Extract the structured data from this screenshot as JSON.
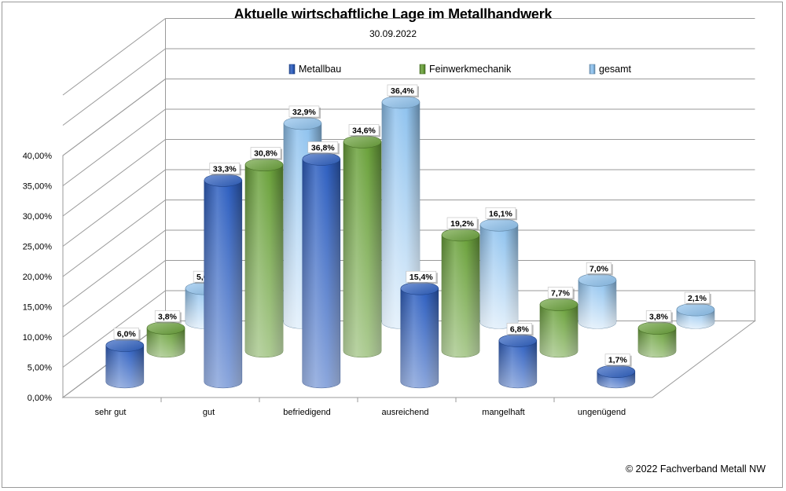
{
  "title": "Aktuelle wirtschaftliche Lage im Metallhandwerk",
  "subtitle": "30.09.2022",
  "copyright": "© 2022 Fachverband Metall NW",
  "colors": {
    "metallbau": "#2e5fc0",
    "feinwerkmechanik": "#6aa13a",
    "gesamt": "#8ec2ee"
  },
  "chart_data": {
    "type": "bar",
    "title": "Aktuelle wirtschaftliche Lage im Metallhandwerk",
    "subtitle": "30.09.2022",
    "categories": [
      "sehr gut",
      "gut",
      "befriedigend",
      "ausreichend",
      "mangelhaft",
      "ungenügend"
    ],
    "series": [
      {
        "name": "Metallbau",
        "values": [
          6.0,
          33.3,
          36.8,
          15.4,
          6.8,
          1.7
        ],
        "labels": [
          "6,0%",
          "33,3%",
          "36,8%",
          "15,4%",
          "6,8%",
          "1,7%"
        ]
      },
      {
        "name": "Feinwerkmechanik",
        "values": [
          3.8,
          30.8,
          34.6,
          19.2,
          7.7,
          3.8
        ],
        "labels": [
          "3,8%",
          "30,8%",
          "34,6%",
          "19,2%",
          "7,7%",
          "3,8%"
        ]
      },
      {
        "name": "gesamt",
        "values": [
          5.6,
          32.9,
          36.4,
          16.1,
          7.0,
          2.1
        ],
        "labels": [
          "5,6%",
          "32,9%",
          "36,4%",
          "16,1%",
          "7,0%",
          "2,1%"
        ]
      }
    ],
    "yticks": [
      "0,00%",
      "5,00%",
      "10,00%",
      "15,00%",
      "20,00%",
      "25,00%",
      "30,00%",
      "35,00%",
      "40,00%"
    ],
    "ylim": [
      0,
      40
    ],
    "bar_shape": "3d-cylinder",
    "grid": true,
    "legend": "top"
  }
}
